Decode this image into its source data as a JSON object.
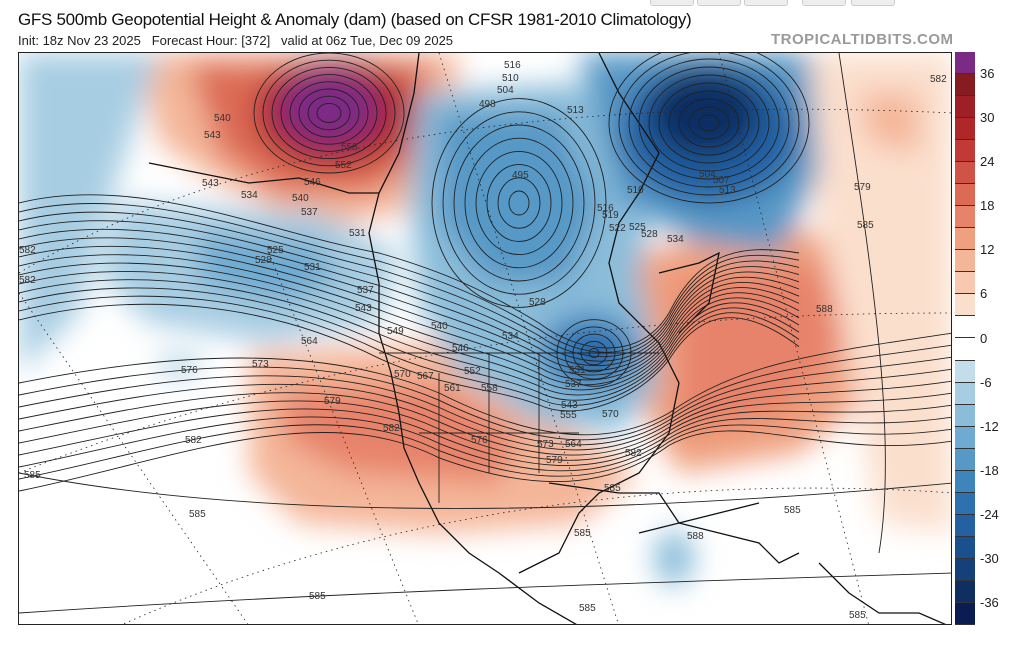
{
  "header": {
    "title": "GFS 500mb Geopotential Height & Anomaly (dam) (based on CFSR 1981-2010 Climatology)",
    "subtitle": "Init: 18z Nov 23 2025   Forecast Hour: [372]   valid at 06z Tue, Dec 09 2025",
    "brand": "TROPICALTIDBITS.COM"
  },
  "colorbar": {
    "range": [
      -39,
      39
    ],
    "step": 3,
    "tick_labels": [
      "36",
      "30",
      "24",
      "18",
      "12",
      "6",
      "0",
      "-6",
      "-12",
      "-18",
      "-24",
      "-30",
      "-36"
    ],
    "colors": [
      "#7b2a85",
      "#861b22",
      "#9e1f25",
      "#b0272a",
      "#c13a37",
      "#cf5445",
      "#dc6a55",
      "#e7836a",
      "#efa07f",
      "#f4b699",
      "#f8c9b0",
      "#fbdfcd",
      "#ffffff",
      "#ffffff",
      "#c3ddeb",
      "#a7cde3",
      "#8bbdda",
      "#6eaad1",
      "#5698c6",
      "#3f85bd",
      "#2e71b0",
      "#2361a3",
      "#1b508e",
      "#15407a",
      "#0f2f63",
      "#0b1c52"
    ]
  },
  "map": {
    "contour_labels": [
      "540",
      "543",
      "558",
      "552",
      "546",
      "540",
      "537",
      "543",
      "534",
      "531",
      "525",
      "528",
      "531",
      "537",
      "543",
      "549",
      "540",
      "546",
      "534",
      "552",
      "561",
      "558",
      "570",
      "567",
      "564",
      "573",
      "576",
      "579",
      "582",
      "582",
      "585",
      "585",
      "585",
      "576",
      "573",
      "579",
      "582",
      "585",
      "570",
      "564",
      "555",
      "543",
      "537",
      "531",
      "528",
      "498",
      "504",
      "510",
      "516",
      "513",
      "495",
      "516",
      "519",
      "522",
      "525",
      "528",
      "534",
      "510",
      "504",
      "507",
      "513",
      "579",
      "585",
      "588",
      "582",
      "582",
      "582",
      "585",
      "588",
      "585",
      "585",
      "585"
    ]
  }
}
